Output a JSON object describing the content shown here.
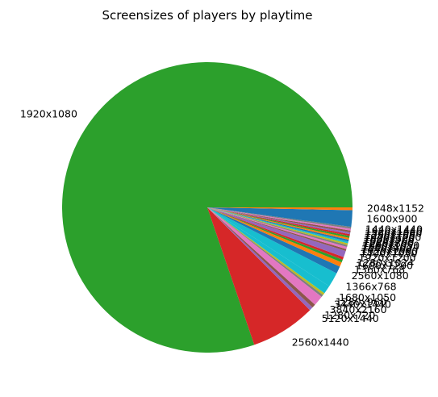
{
  "chart_data": {
    "type": "pie",
    "title": "Screensizes of players by playtime",
    "start_angle_deg": 0,
    "direction": "counterclockwise",
    "slices": [
      {
        "label": "1920x1080",
        "value": 78.6,
        "color": "#2ca02c"
      },
      {
        "label": "2560x1440",
        "value": 7.1,
        "color": "#d62728"
      },
      {
        "label": "5120x1440",
        "value": 0.4,
        "color": "#9467bd"
      },
      {
        "label": "1280x720",
        "value": 0.4,
        "color": "#8c564b"
      },
      {
        "label": "3840x2160",
        "value": 1.1,
        "color": "#e377c2"
      },
      {
        "label": "3440x1440",
        "value": 0.25,
        "color": "#7f7f7f"
      },
      {
        "label": "1280x960",
        "value": 0.25,
        "color": "#bcbd22"
      },
      {
        "label": "1680x1050",
        "value": 0.9,
        "color": "#17becf"
      },
      {
        "label": "1366x768",
        "value": 1.6,
        "color": "#17becf"
      },
      {
        "label": "2560x1080",
        "value": 0.8,
        "color": "#1f77b4"
      },
      {
        "label": "1360x768",
        "value": 0.5,
        "color": "#ff7f0e"
      },
      {
        "label": "1600x1200",
        "value": 0.3,
        "color": "#2ca02c"
      },
      {
        "label": "1280x1024",
        "value": 0.3,
        "color": "#d62728"
      },
      {
        "label": "1920x1200",
        "value": 0.7,
        "color": "#9467bd"
      },
      {
        "label": "1400x1050",
        "value": 0.2,
        "color": "#8c564b"
      },
      {
        "label": "1920x1080",
        "value": 0.25,
        "color": "#e377c2"
      },
      {
        "label": "1440x900",
        "value": 0.2,
        "color": "#7f7f7f"
      },
      {
        "label": "1600x1024",
        "value": 0.2,
        "color": "#bcbd22"
      },
      {
        "label": "1680x1050",
        "value": 0.2,
        "color": "#17becf"
      },
      {
        "label": "1280x800",
        "value": 0.2,
        "color": "#1f77b4"
      },
      {
        "label": "1024x768",
        "value": 0.2,
        "color": "#ff7f0e"
      },
      {
        "label": "1600x900",
        "value": 0.2,
        "color": "#2ca02c"
      },
      {
        "label": "1920x1200",
        "value": 0.2,
        "color": "#d62728"
      },
      {
        "label": "1280x768",
        "value": 0.2,
        "color": "#9467bd"
      },
      {
        "label": "1360x1080",
        "value": 0.2,
        "color": "#8c564b"
      },
      {
        "label": "1920x1440",
        "value": 0.2,
        "color": "#e377c2"
      },
      {
        "label": "1440x1440",
        "value": 0.2,
        "color": "#7f7f7f"
      },
      {
        "label": "1600x900",
        "value": 1.8,
        "color": "#1f77b4"
      },
      {
        "label": "2048x1152",
        "value": 0.3,
        "color": "#ff7f0e"
      }
    ]
  }
}
